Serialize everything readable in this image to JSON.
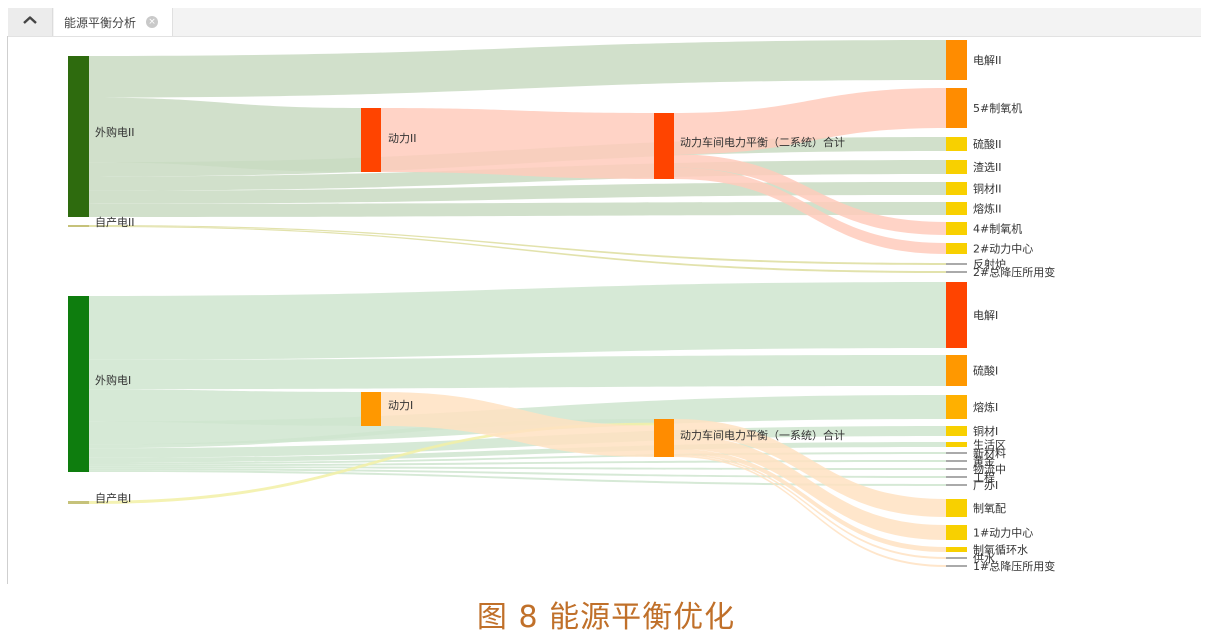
{
  "tab": {
    "title": "能源平衡分析"
  },
  "caption": "图 8 能源平衡优化",
  "icons": {
    "home": "home-icon",
    "close": "close-icon"
  },
  "chart_data": {
    "type": "sankey",
    "nodes": [
      {
        "id": "n0",
        "name": "外购电II",
        "color": "#2e6b0e"
      },
      {
        "id": "n1",
        "name": "自产电II",
        "color": "#c6c27a"
      },
      {
        "id": "n2",
        "name": "动力II",
        "color": "#ff4400"
      },
      {
        "id": "n3",
        "name": "动力车间电力平衡（二系统）合计",
        "color": "#ff4400"
      },
      {
        "id": "n4",
        "name": "电解II",
        "color": "#ff8c00"
      },
      {
        "id": "n5",
        "name": "5#制氧机",
        "color": "#ff8c00"
      },
      {
        "id": "n6",
        "name": "硫酸II",
        "color": "#f8d000"
      },
      {
        "id": "n7",
        "name": "渣选II",
        "color": "#f8d000"
      },
      {
        "id": "n8",
        "name": "铜材II",
        "color": "#f8d000"
      },
      {
        "id": "n9",
        "name": "熔炼II",
        "color": "#f8d000"
      },
      {
        "id": "n10",
        "name": "4#制氧机",
        "color": "#f8d000"
      },
      {
        "id": "n11",
        "name": "2#动力中心",
        "color": "#f8d000"
      },
      {
        "id": "n12",
        "name": "反射炉",
        "color": "#aaaaaa"
      },
      {
        "id": "n13",
        "name": "2#总降压所用变",
        "color": "#aaaaaa"
      },
      {
        "id": "n14",
        "name": "外购电I",
        "color": "#0e7d0e"
      },
      {
        "id": "n15",
        "name": "自产电I",
        "color": "#c6c27a"
      },
      {
        "id": "n16",
        "name": "动力I",
        "color": "#ff9800"
      },
      {
        "id": "n17",
        "name": "动力车间电力平衡（一系统）合计",
        "color": "#ff8c00"
      },
      {
        "id": "n18",
        "name": "电解I",
        "color": "#ff4400"
      },
      {
        "id": "n19",
        "name": "硫酸I",
        "color": "#ff9800"
      },
      {
        "id": "n20",
        "name": "熔炼I",
        "color": "#ffb000"
      },
      {
        "id": "n21",
        "name": "铜材I",
        "color": "#f8d000"
      },
      {
        "id": "n22",
        "name": "生活区",
        "color": "#f8d000"
      },
      {
        "id": "n23",
        "name": "新材料",
        "color": "#aaaaaa"
      },
      {
        "id": "n24",
        "name": "黄金",
        "color": "#aaaaaa"
      },
      {
        "id": "n25",
        "name": "物流中",
        "color": "#aaaaaa"
      },
      {
        "id": "n26",
        "name": "工程",
        "color": "#aaaaaa"
      },
      {
        "id": "n27",
        "name": "广办I",
        "color": "#aaaaaa"
      },
      {
        "id": "n28",
        "name": "制氧配",
        "color": "#f8d000"
      },
      {
        "id": "n29",
        "name": "1#动力中心",
        "color": "#f8d000"
      },
      {
        "id": "n30",
        "name": "制氧循环水",
        "color": "#f8d000"
      },
      {
        "id": "n31",
        "name": "供水",
        "color": "#aaaaaa"
      },
      {
        "id": "n32",
        "name": "1#总降压所用变",
        "color": "#aaaaaa"
      }
    ],
    "links": [
      {
        "source": "n0",
        "target": "n4",
        "value": 41,
        "color": "#c9dbc2"
      },
      {
        "source": "n0",
        "target": "n2",
        "value": 64,
        "color": "#c9dbc2"
      },
      {
        "source": "n0",
        "target": "n6",
        "value": 14,
        "color": "#c9dbc2"
      },
      {
        "source": "n0",
        "target": "n7",
        "value": 14,
        "color": "#c9dbc2"
      },
      {
        "source": "n0",
        "target": "n8",
        "value": 13,
        "color": "#c9dbc2"
      },
      {
        "source": "n0",
        "target": "n9",
        "value": 13,
        "color": "#c9dbc2"
      },
      {
        "source": "n1",
        "target": "n12",
        "value": 2,
        "color": "#dddd9e"
      },
      {
        "source": "n1",
        "target": "n13",
        "value": 2,
        "color": "#dddd9e"
      },
      {
        "source": "n2",
        "target": "n3",
        "value": 64,
        "color": "#ffcbbc"
      },
      {
        "source": "n3",
        "target": "n5",
        "value": 40,
        "color": "#ffcbbc"
      },
      {
        "source": "n3",
        "target": "n10",
        "value": 13,
        "color": "#ffcbbc"
      },
      {
        "source": "n3",
        "target": "n11",
        "value": 11,
        "color": "#ffcbbc"
      },
      {
        "source": "n14",
        "target": "n18",
        "value": 67,
        "color": "#cfe5cf"
      },
      {
        "source": "n14",
        "target": "n19",
        "value": 31,
        "color": "#cfe5cf"
      },
      {
        "source": "n14",
        "target": "n16",
        "value": 34,
        "color": "#cfe5cf"
      },
      {
        "source": "n14",
        "target": "n20",
        "value": 24,
        "color": "#cfe5cf"
      },
      {
        "source": "n14",
        "target": "n17",
        "value": 4,
        "color": "#cfe5cf"
      },
      {
        "source": "n14",
        "target": "n21",
        "value": 10,
        "color": "#cfe5cf"
      },
      {
        "source": "n14",
        "target": "n22",
        "value": 5,
        "color": "#cfe5cf"
      },
      {
        "source": "n14",
        "target": "n23",
        "value": 2,
        "color": "#cfe5cf"
      },
      {
        "source": "n14",
        "target": "n24",
        "value": 2,
        "color": "#cfe5cf"
      },
      {
        "source": "n14",
        "target": "n25",
        "value": 2,
        "color": "#cfe5cf"
      },
      {
        "source": "n14",
        "target": "n26",
        "value": 2,
        "color": "#cfe5cf"
      },
      {
        "source": "n14",
        "target": "n27",
        "value": 2,
        "color": "#cfe5cf"
      },
      {
        "source": "n15",
        "target": "n17",
        "value": 3,
        "color": "#f2f0a6"
      },
      {
        "source": "n16",
        "target": "n17",
        "value": 34,
        "color": "#ffe2c2"
      },
      {
        "source": "n17",
        "target": "n28",
        "value": 18,
        "color": "#ffe2c2"
      },
      {
        "source": "n17",
        "target": "n29",
        "value": 15,
        "color": "#ffe2c2"
      },
      {
        "source": "n17",
        "target": "n30",
        "value": 5,
        "color": "#ffe2c2"
      },
      {
        "source": "n17",
        "target": "n31",
        "value": 2,
        "color": "#ffe2c2"
      },
      {
        "source": "n17",
        "target": "n32",
        "value": 2,
        "color": "#ffe2c2"
      }
    ]
  }
}
